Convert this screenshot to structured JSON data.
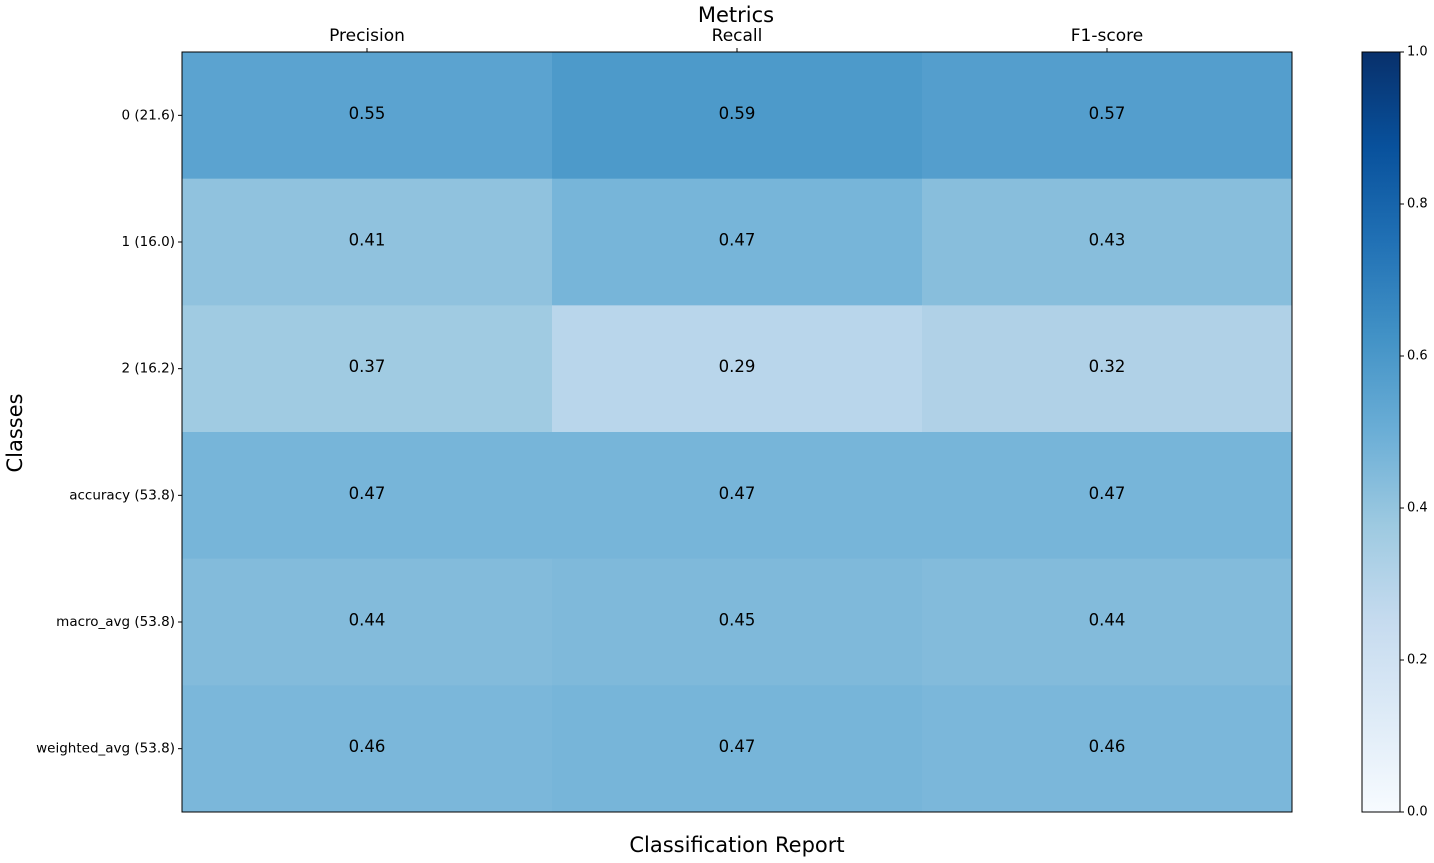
{
  "chart_data": {
    "type": "heatmap",
    "title": "Metrics",
    "xlabel": "Classification Report",
    "ylabel": "Classes",
    "columns": [
      "Precision",
      "Recall",
      "F1-score"
    ],
    "rows": [
      "0 (21.6)",
      "1 (16.0)",
      "2 (16.2)",
      "accuracy (53.8)",
      "macro_avg (53.8)",
      "weighted_avg (53.8)"
    ],
    "values": [
      [
        0.55,
        0.59,
        0.57
      ],
      [
        0.41,
        0.47,
        0.43
      ],
      [
        0.37,
        0.29,
        0.32
      ],
      [
        0.47,
        0.47,
        0.47
      ],
      [
        0.44,
        0.45,
        0.44
      ],
      [
        0.46,
        0.47,
        0.46
      ]
    ],
    "cell_labels": [
      [
        "0.55",
        "0.59",
        "0.57"
      ],
      [
        "0.41",
        "0.47",
        "0.43"
      ],
      [
        "0.37",
        "0.29",
        "0.32"
      ],
      [
        "0.47",
        "0.47",
        "0.47"
      ],
      [
        "0.44",
        "0.45",
        "0.44"
      ],
      [
        "0.46",
        "0.47",
        "0.46"
      ]
    ],
    "colormap": "Blues",
    "colorbar": {
      "range": [
        0,
        1
      ],
      "ticks": [
        0.0,
        0.2,
        0.4,
        0.6,
        0.8,
        1.0
      ],
      "tick_labels": [
        "0.0",
        "0.2",
        "0.4",
        "0.6",
        "0.8",
        "1.0"
      ]
    },
    "grid": false
  }
}
